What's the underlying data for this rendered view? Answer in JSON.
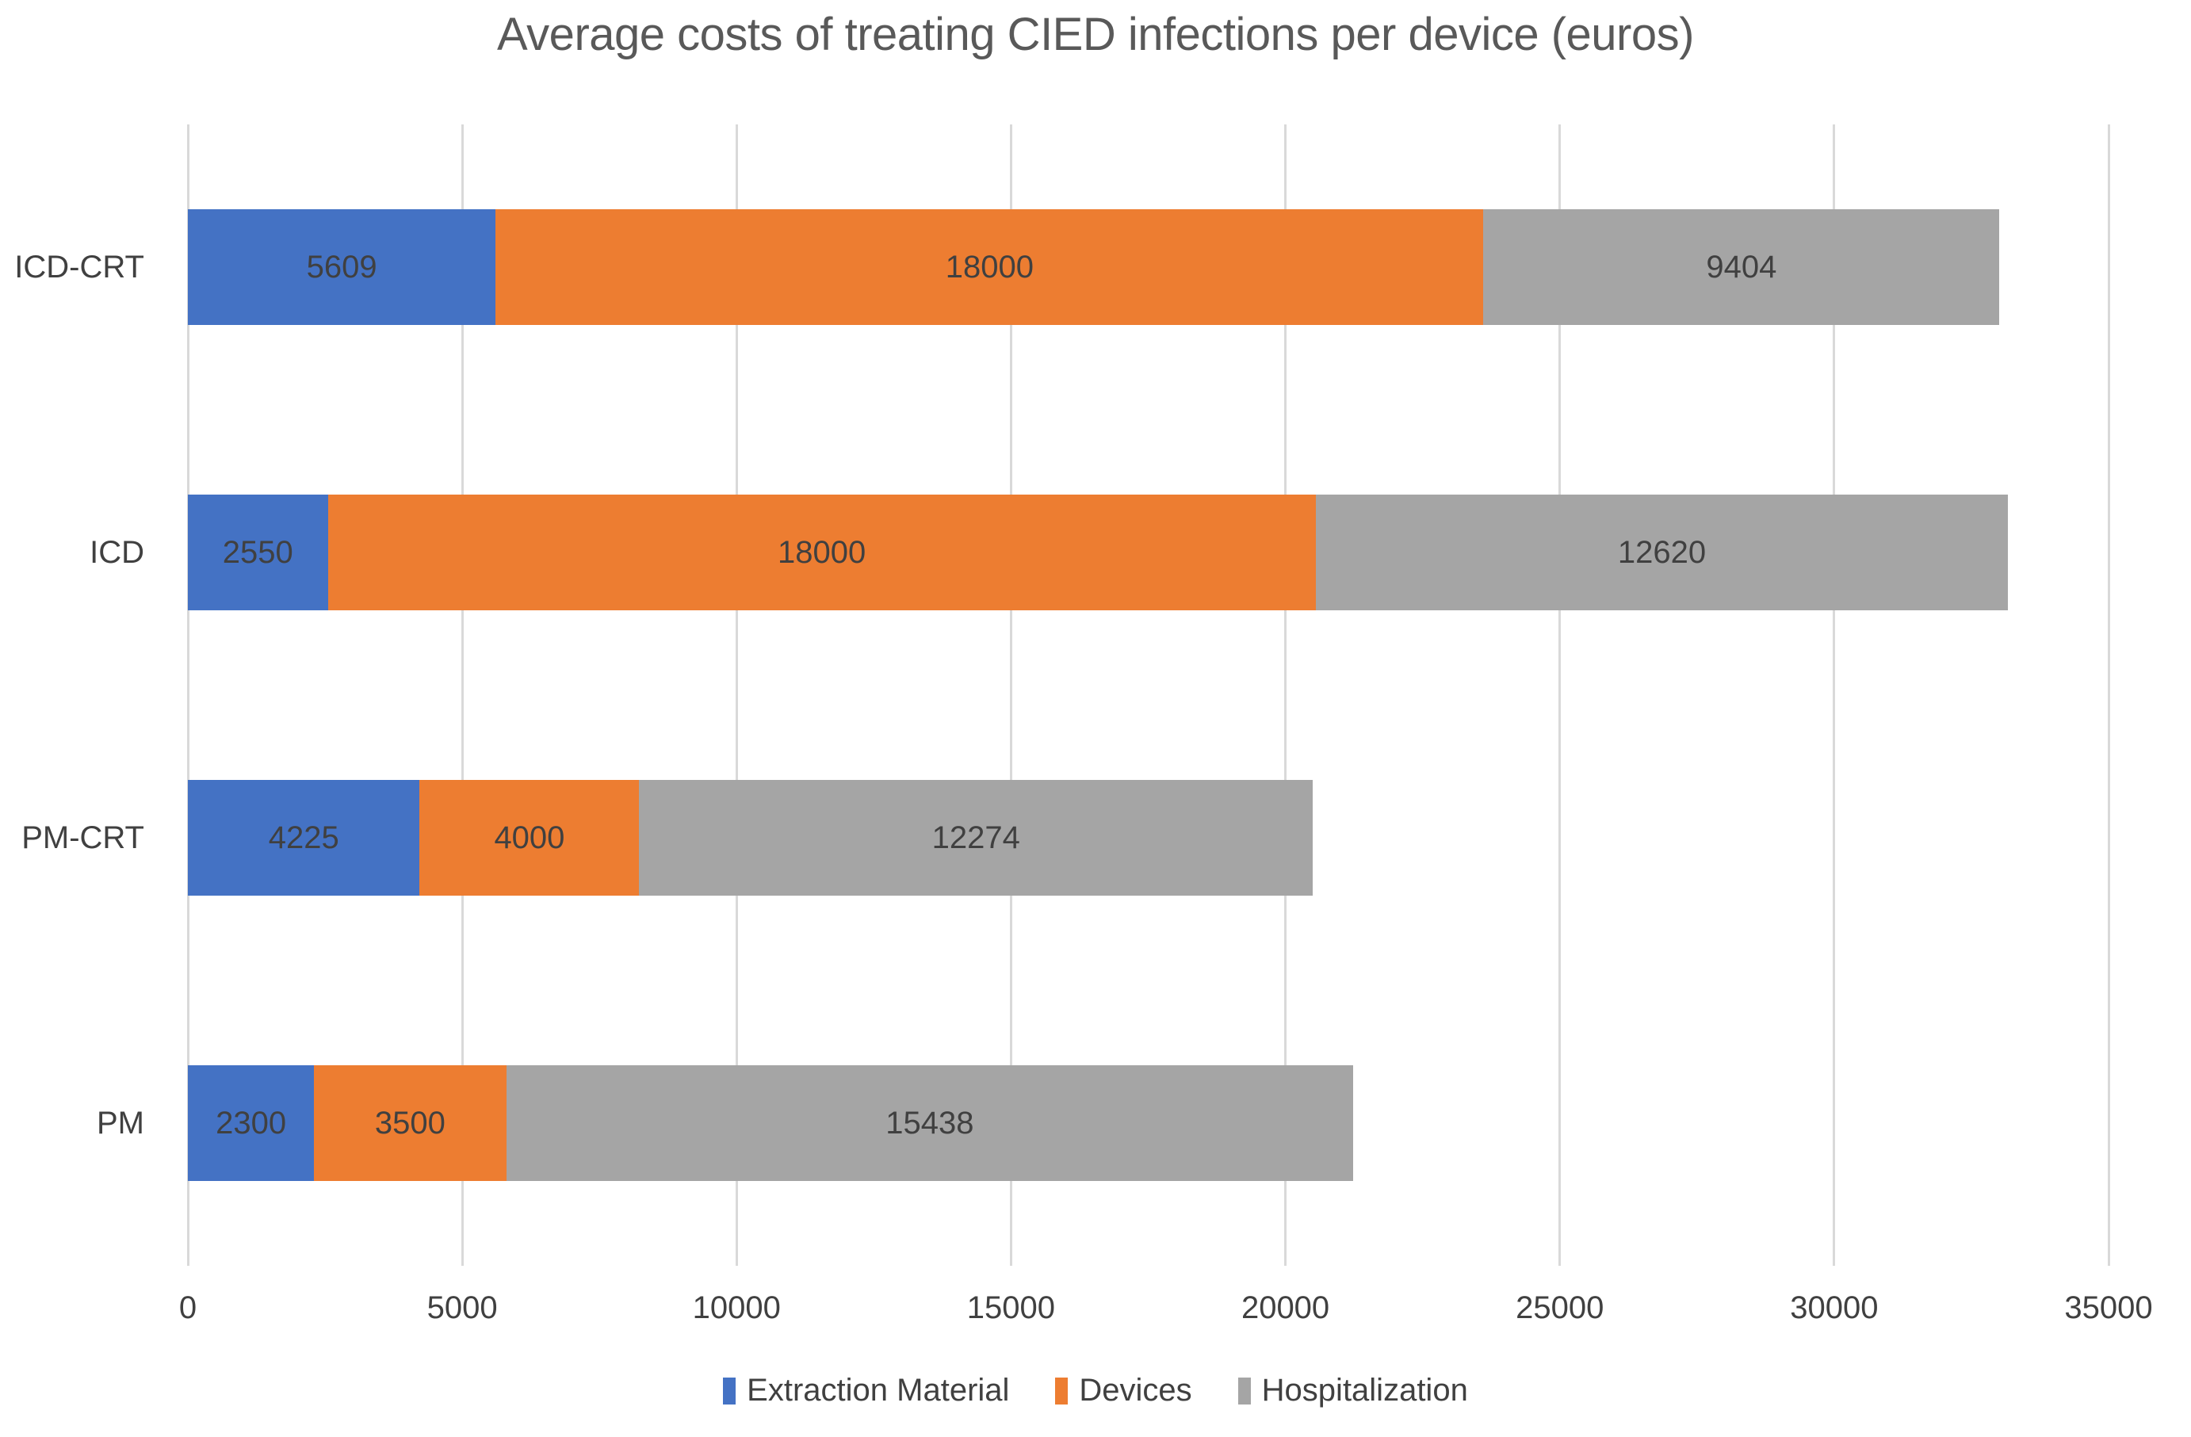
{
  "chart_data": {
    "type": "bar",
    "orientation": "horizontal",
    "stacked": true,
    "title": "Average costs of treating CIED infections per device (euros)",
    "categories": [
      "ICD-CRT",
      "ICD",
      "PM-CRT",
      "PM"
    ],
    "series": [
      {
        "name": "Extraction Material",
        "color": "#4472C4",
        "values": [
          5609,
          2550,
          4225,
          2300
        ]
      },
      {
        "name": "Devices",
        "color": "#ED7D31",
        "values": [
          18000,
          18000,
          4000,
          3500
        ]
      },
      {
        "name": "Hospitalization",
        "color": "#A5A5A5",
        "values": [
          9404,
          12620,
          12274,
          15438
        ]
      }
    ],
    "totals": [
      33013,
      33170,
      20499,
      21238
    ],
    "xlabel": "",
    "ylabel": "",
    "xlim": [
      0,
      35000
    ],
    "x_ticks": [
      0,
      5000,
      10000,
      15000,
      20000,
      25000,
      30000,
      35000
    ],
    "grid": "vertical-only",
    "legend_position": "bottom-center"
  },
  "colors": {
    "background": "#FFFFFF",
    "title_text": "#595959",
    "label_text": "#404040",
    "gridline": "#D9D9D9"
  }
}
